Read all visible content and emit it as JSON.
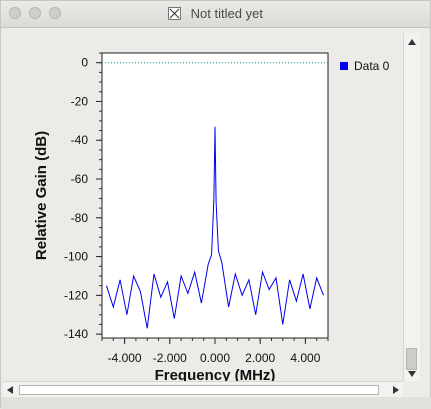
{
  "window": {
    "title": "Not titled yet"
  },
  "legend": {
    "label": "Data 0",
    "color": "#0000ee"
  },
  "chart_data": {
    "type": "line",
    "xlabel": "Frequency (MHz)",
    "ylabel": "Relative Gain (dB)",
    "xlim": [
      -5.0,
      5.0
    ],
    "ylim": [
      -142,
      5
    ],
    "x_ticks": [
      "-4.000",
      "-2.000",
      "0.000",
      "2.000",
      "4.000"
    ],
    "y_ticks": [
      "0",
      "-20",
      "-40",
      "-60",
      "-80",
      "-100",
      "-120",
      "-140"
    ],
    "reference_line": {
      "y": 0,
      "color": "#008b8b",
      "style": "dotted"
    },
    "series": [
      {
        "color": "#0000ee",
        "x": [
          -4.8,
          -4.5,
          -4.2,
          -3.9,
          -3.6,
          -3.3,
          -3.0,
          -2.7,
          -2.4,
          -2.1,
          -1.8,
          -1.5,
          -1.2,
          -0.9,
          -0.6,
          -0.3,
          -0.15,
          -0.05,
          0.0,
          0.05,
          0.15,
          0.3,
          0.6,
          0.9,
          1.2,
          1.5,
          1.8,
          2.1,
          2.4,
          2.7,
          3.0,
          3.3,
          3.6,
          3.9,
          4.2,
          4.5,
          4.8
        ],
        "y": [
          -115,
          -126,
          -112,
          -130,
          -110,
          -118,
          -137,
          -109,
          -121,
          -113,
          -132,
          -110,
          -119,
          -108,
          -124,
          -104,
          -99,
          -70,
          -33,
          -72,
          -97,
          -103,
          -126,
          -109,
          -120,
          -112,
          -130,
          -108,
          -117,
          -111,
          -135,
          -112,
          -123,
          -109,
          -127,
          -111,
          -120
        ]
      }
    ]
  }
}
